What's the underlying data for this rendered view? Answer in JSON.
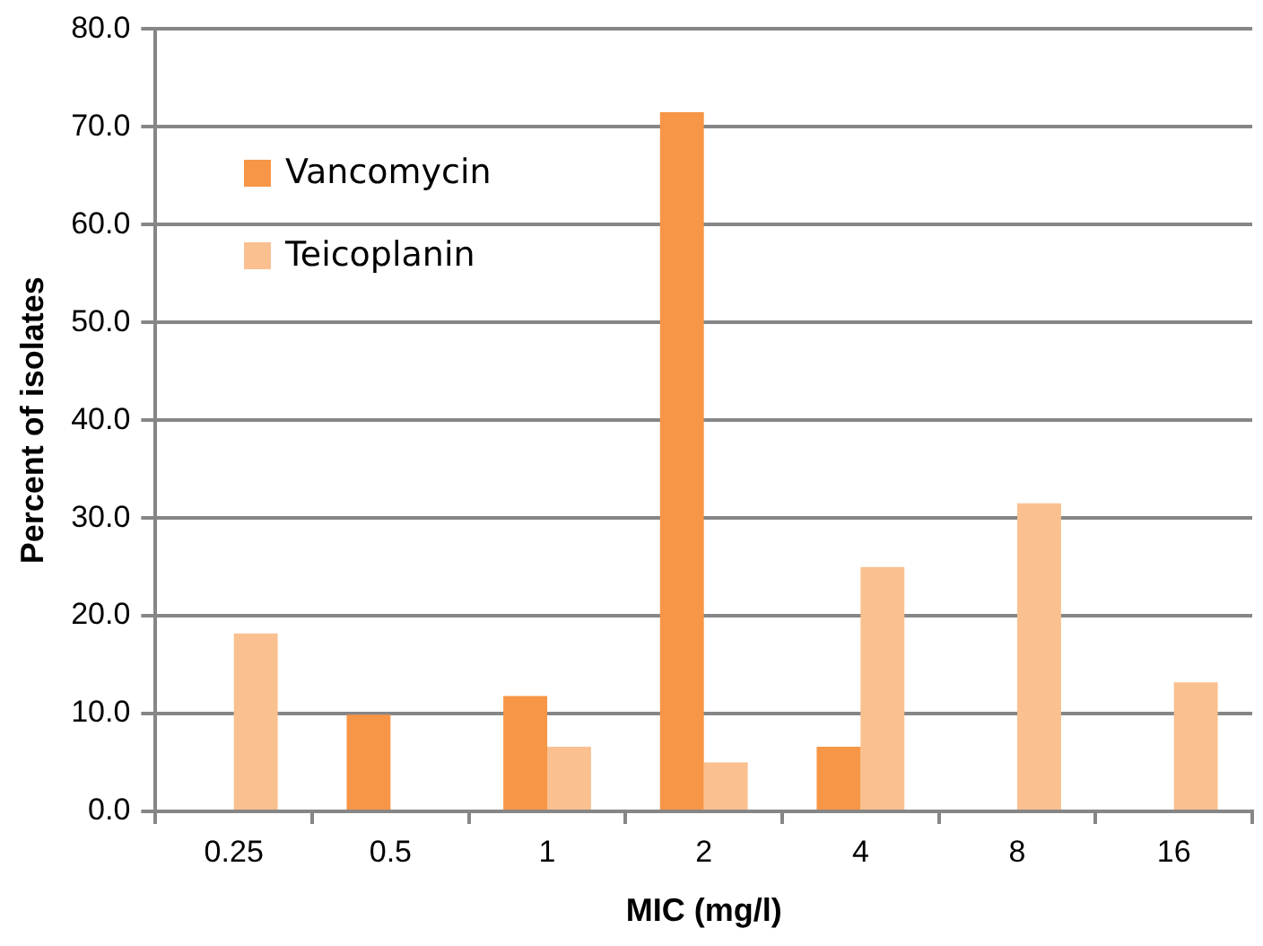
{
  "chart_data": {
    "type": "bar",
    "xlabel": "MIC (mg/l)",
    "ylabel": "Percent of isolates",
    "categories": [
      "0.25",
      "0.5",
      "1",
      "2",
      "4",
      "8",
      "16"
    ],
    "series": [
      {
        "name": "Vancomycin",
        "color": "#f79646",
        "values": [
          0,
          9.9,
          11.8,
          71.5,
          6.6,
          0,
          0
        ]
      },
      {
        "name": "Teicoplanin",
        "color": "#fac090",
        "values": [
          18.2,
          0,
          6.6,
          5.0,
          25.0,
          31.5,
          13.2
        ]
      }
    ],
    "ylim": [
      0,
      80
    ],
    "yticks": [
      {
        "value": 0,
        "label": "0.0"
      },
      {
        "value": 10,
        "label": "10.0"
      },
      {
        "value": 20,
        "label": "20.0"
      },
      {
        "value": 30,
        "label": "30.0"
      },
      {
        "value": 40,
        "label": "40.0"
      },
      {
        "value": 50,
        "label": "50.0"
      },
      {
        "value": 60,
        "label": "60.0"
      },
      {
        "value": 70,
        "label": "70.0"
      },
      {
        "value": 80,
        "label": "80.0"
      }
    ],
    "grid": "y",
    "legend": "top left"
  }
}
